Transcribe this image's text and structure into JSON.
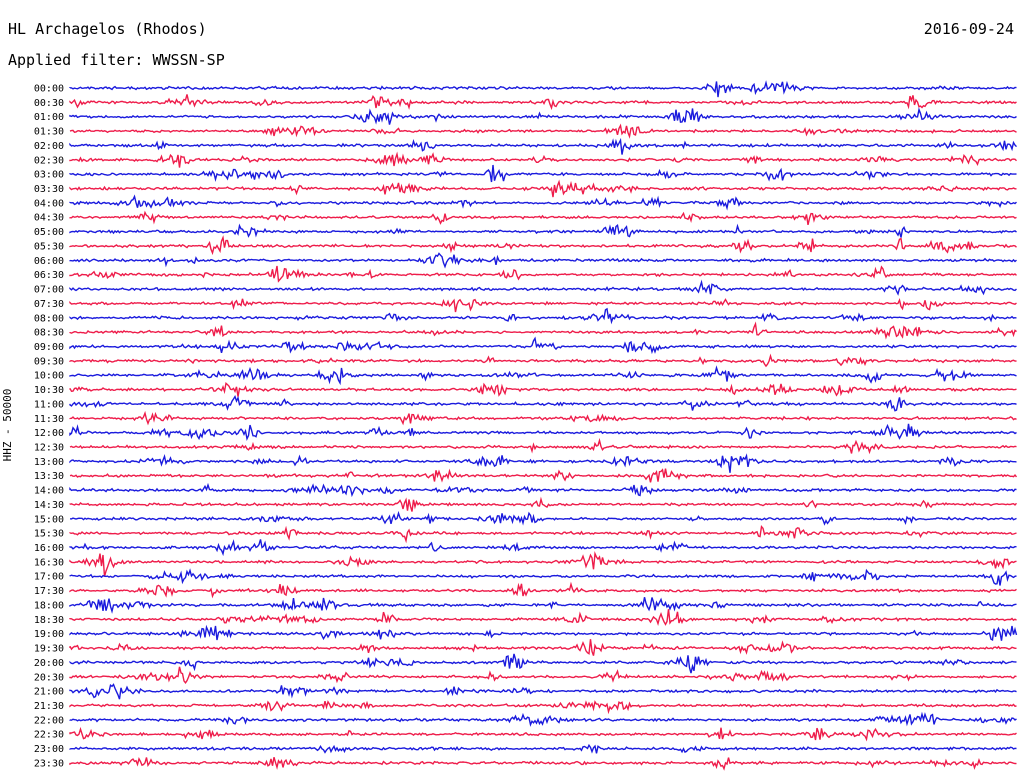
{
  "header": {
    "station": "HL Archagelos (Rhodos)",
    "filter": "Applied filter: WWSSN-SP",
    "date": "2016-09-24"
  },
  "chart_data": {
    "type": "line",
    "title": "HL Archagelos (Rhodos)",
    "ylabel": "HHZ - 50000",
    "date": "2016-09-24",
    "trace_rows": [
      "00:00",
      "00:30",
      "01:00",
      "01:30",
      "02:00",
      "02:30",
      "03:00",
      "03:30",
      "04:00",
      "04:30",
      "05:00",
      "05:30",
      "06:00",
      "06:30",
      "07:00",
      "07:30",
      "08:00",
      "08:30",
      "09:00",
      "09:30",
      "10:00",
      "10:30",
      "11:00",
      "11:30",
      "12:00",
      "12:30",
      "13:00",
      "13:30",
      "14:00",
      "14:30",
      "15:00",
      "15:30",
      "16:00",
      "16:30",
      "17:00",
      "17:30",
      "18:00",
      "18:30",
      "19:00",
      "19:30",
      "20:00",
      "20:30",
      "21:00",
      "21:30",
      "22:00",
      "22:30",
      "23:00",
      "23:30"
    ],
    "colors": {
      "even_rows": "#1a1add",
      "odd_rows": "#ee1c4a"
    },
    "grid": false
  }
}
